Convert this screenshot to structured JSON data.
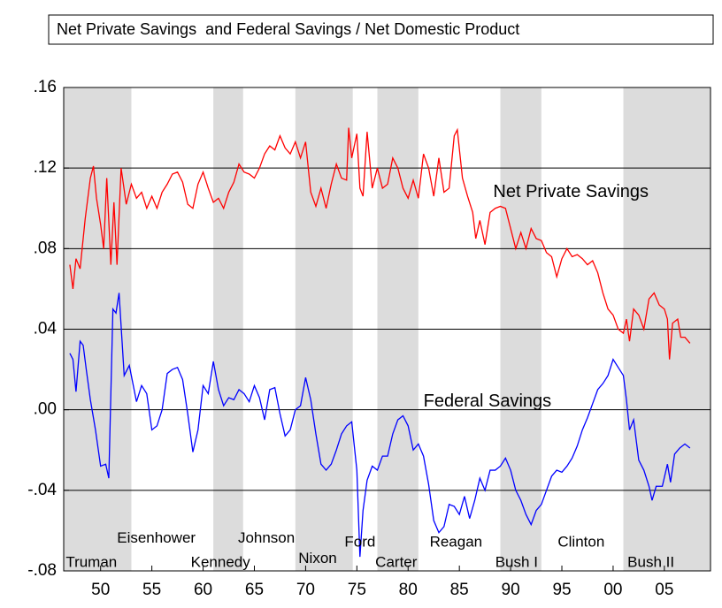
{
  "chart_data": {
    "type": "line",
    "title": "Net Private Savings  and Federal Savings / Net Domestic Product",
    "xlim": [
      1946.4,
      2009.5
    ],
    "ylim": [
      -0.08,
      0.16
    ],
    "xticks": [
      {
        "value": 1950,
        "label": "50"
      },
      {
        "value": 1955,
        "label": "55"
      },
      {
        "value": 1960,
        "label": "60"
      },
      {
        "value": 1965,
        "label": "65"
      },
      {
        "value": 1970,
        "label": "70"
      },
      {
        "value": 1975,
        "label": "75"
      },
      {
        "value": 1980,
        "label": "80"
      },
      {
        "value": 1985,
        "label": "85"
      },
      {
        "value": 1990,
        "label": "90"
      },
      {
        "value": 1995,
        "label": "95"
      },
      {
        "value": 2000,
        "label": "00"
      },
      {
        "value": 2005,
        "label": "05"
      }
    ],
    "yticks": [
      {
        "value": -0.08,
        "label": "-.08"
      },
      {
        "value": -0.04,
        "label": "-.04"
      },
      {
        "value": 0,
        "label": ".00"
      },
      {
        "value": 0.04,
        "label": ".04"
      },
      {
        "value": 0.08,
        "label": ".08"
      },
      {
        "value": 0.12,
        "label": ".12"
      },
      {
        "value": 0.16,
        "label": ".16"
      }
    ],
    "grid": true,
    "shading": [
      [
        1945,
        1953
      ],
      [
        1961,
        1963.9
      ],
      [
        1969,
        1974.6
      ],
      [
        1977,
        1981
      ],
      [
        1989,
        1993
      ],
      [
        2001,
        2010
      ]
    ],
    "shading_color": "#dcdcdc",
    "series": [
      {
        "name": "Net Private Savings",
        "color": "#ff0000",
        "x": [
          1947.0,
          1947.3,
          1947.6,
          1948.0,
          1948.5,
          1949.0,
          1949.3,
          1949.6,
          1950.0,
          1950.3,
          1950.6,
          1951.0,
          1951.3,
          1951.6,
          1952.0,
          1952.5,
          1953.0,
          1953.5,
          1954.0,
          1954.5,
          1955.0,
          1955.5,
          1956.0,
          1956.5,
          1957.0,
          1957.5,
          1958.0,
          1958.5,
          1959.0,
          1959.5,
          1960.0,
          1960.5,
          1961.0,
          1961.5,
          1962.0,
          1962.5,
          1963.0,
          1963.5,
          1964.0,
          1964.5,
          1965.0,
          1965.5,
          1966.0,
          1966.5,
          1967.0,
          1967.5,
          1968.0,
          1968.5,
          1969.0,
          1969.5,
          1970.0,
          1970.5,
          1971.0,
          1971.5,
          1972.0,
          1972.5,
          1973.0,
          1973.5,
          1974.0,
          1974.2,
          1974.5,
          1975.0,
          1975.3,
          1975.6,
          1976.0,
          1976.5,
          1977.0,
          1977.5,
          1978.0,
          1978.5,
          1979.0,
          1979.5,
          1980.0,
          1980.5,
          1981.0,
          1981.5,
          1982.0,
          1982.5,
          1983.0,
          1983.5,
          1984.0,
          1984.5,
          1984.8,
          1985.3,
          1985.8,
          1986.3,
          1986.6,
          1987.0,
          1987.5,
          1988.0,
          1988.5,
          1989.0,
          1989.5,
          1990.0,
          1990.5,
          1991.0,
          1991.5,
          1992.0,
          1992.5,
          1993.0,
          1993.5,
          1994.0,
          1994.5,
          1995.0,
          1995.5,
          1996.0,
          1996.5,
          1997.0,
          1997.5,
          1998.0,
          1998.5,
          1999.0,
          1999.5,
          2000.0,
          2000.5,
          2001.0,
          2001.3,
          2001.6,
          2002.0,
          2002.5,
          2003.0,
          2003.5,
          2004.0,
          2004.5,
          2005.0,
          2005.3,
          2005.5,
          2005.8,
          2006.3,
          2006.6,
          2007.0,
          2007.5
        ],
        "values": [
          0.072,
          0.06,
          0.075,
          0.07,
          0.095,
          0.115,
          0.121,
          0.105,
          0.092,
          0.08,
          0.115,
          0.072,
          0.103,
          0.072,
          0.12,
          0.102,
          0.112,
          0.105,
          0.108,
          0.1,
          0.106,
          0.1,
          0.108,
          0.112,
          0.117,
          0.118,
          0.113,
          0.102,
          0.1,
          0.112,
          0.118,
          0.11,
          0.103,
          0.105,
          0.1,
          0.108,
          0.113,
          0.122,
          0.118,
          0.117,
          0.115,
          0.12,
          0.127,
          0.131,
          0.129,
          0.136,
          0.13,
          0.127,
          0.133,
          0.125,
          0.133,
          0.108,
          0.101,
          0.11,
          0.1,
          0.112,
          0.122,
          0.115,
          0.114,
          0.14,
          0.125,
          0.137,
          0.11,
          0.106,
          0.138,
          0.11,
          0.12,
          0.11,
          0.112,
          0.125,
          0.12,
          0.11,
          0.105,
          0.114,
          0.105,
          0.127,
          0.12,
          0.106,
          0.125,
          0.108,
          0.11,
          0.136,
          0.139,
          0.115,
          0.106,
          0.098,
          0.085,
          0.094,
          0.082,
          0.098,
          0.1,
          0.101,
          0.1,
          0.09,
          0.08,
          0.088,
          0.08,
          0.09,
          0.085,
          0.084,
          0.078,
          0.076,
          0.066,
          0.075,
          0.08,
          0.076,
          0.077,
          0.075,
          0.072,
          0.074,
          0.068,
          0.058,
          0.05,
          0.047,
          0.04,
          0.038,
          0.045,
          0.034,
          0.05,
          0.047,
          0.04,
          0.055,
          0.058,
          0.052,
          0.05,
          0.045,
          0.025,
          0.043,
          0.045,
          0.036,
          0.036,
          0.033
        ]
      },
      {
        "name": "Federal Savings",
        "color": "#0000ff",
        "x": [
          1947.0,
          1947.3,
          1947.6,
          1948.0,
          1948.3,
          1948.6,
          1949.0,
          1949.5,
          1950.0,
          1950.5,
          1950.8,
          1951.2,
          1951.5,
          1951.8,
          1952.3,
          1952.8,
          1953.5,
          1954.0,
          1954.5,
          1955.0,
          1955.5,
          1956.0,
          1956.5,
          1957.0,
          1957.5,
          1958.0,
          1958.5,
          1959.0,
          1959.5,
          1960.0,
          1960.5,
          1961.0,
          1961.5,
          1962.0,
          1962.5,
          1963.0,
          1963.5,
          1964.0,
          1964.5,
          1965.0,
          1965.5,
          1966.0,
          1966.5,
          1967.0,
          1967.5,
          1968.0,
          1968.5,
          1969.0,
          1969.5,
          1970.0,
          1970.5,
          1971.0,
          1971.5,
          1972.0,
          1972.5,
          1973.0,
          1973.5,
          1974.0,
          1974.5,
          1975.0,
          1975.3,
          1975.6,
          1976.0,
          1976.5,
          1977.0,
          1977.5,
          1978.0,
          1978.5,
          1979.0,
          1979.5,
          1980.0,
          1980.5,
          1981.0,
          1981.5,
          1982.0,
          1982.5,
          1983.0,
          1983.5,
          1984.0,
          1984.5,
          1985.0,
          1985.5,
          1986.0,
          1986.5,
          1987.0,
          1987.5,
          1988.0,
          1988.5,
          1989.0,
          1989.5,
          1990.0,
          1990.5,
          1991.0,
          1991.5,
          1992.0,
          1992.5,
          1993.0,
          1993.5,
          1994.0,
          1994.5,
          1995.0,
          1995.5,
          1996.0,
          1996.5,
          1997.0,
          1997.5,
          1998.0,
          1998.5,
          1999.0,
          1999.5,
          2000.0,
          2000.5,
          2001.0,
          2001.3,
          2001.6,
          2002.0,
          2002.5,
          2003.0,
          2003.5,
          2003.8,
          2004.2,
          2004.8,
          2005.3,
          2005.6,
          2006.0,
          2006.5,
          2007.0,
          2007.5
        ],
        "values": [
          0.028,
          0.025,
          0.009,
          0.034,
          0.032,
          0.02,
          0.005,
          -0.01,
          -0.028,
          -0.027,
          -0.034,
          0.05,
          0.048,
          0.058,
          0.017,
          0.022,
          0.004,
          0.012,
          0.008,
          -0.01,
          -0.008,
          0.0,
          0.018,
          0.02,
          0.021,
          0.015,
          -0.002,
          -0.021,
          -0.01,
          0.012,
          0.008,
          0.024,
          0.01,
          0.002,
          0.006,
          0.005,
          0.01,
          0.008,
          0.004,
          0.012,
          0.006,
          -0.005,
          0.01,
          0.011,
          -0.002,
          -0.013,
          -0.01,
          0.0,
          0.002,
          0.016,
          0.005,
          -0.012,
          -0.027,
          -0.03,
          -0.027,
          -0.02,
          -0.012,
          -0.008,
          -0.006,
          -0.03,
          -0.073,
          -0.05,
          -0.035,
          -0.028,
          -0.03,
          -0.023,
          -0.023,
          -0.012,
          -0.005,
          -0.003,
          -0.008,
          -0.02,
          -0.017,
          -0.023,
          -0.037,
          -0.055,
          -0.061,
          -0.058,
          -0.047,
          -0.048,
          -0.052,
          -0.043,
          -0.054,
          -0.045,
          -0.034,
          -0.04,
          -0.03,
          -0.03,
          -0.028,
          -0.024,
          -0.03,
          -0.04,
          -0.045,
          -0.052,
          -0.057,
          -0.05,
          -0.047,
          -0.04,
          -0.033,
          -0.03,
          -0.031,
          -0.028,
          -0.024,
          -0.018,
          -0.01,
          -0.004,
          0.003,
          0.01,
          0.013,
          0.017,
          0.025,
          0.021,
          0.017,
          0.005,
          -0.01,
          -0.005,
          -0.025,
          -0.03,
          -0.038,
          -0.045,
          -0.038,
          -0.038,
          -0.027,
          -0.036,
          -0.022,
          -0.019,
          -0.017,
          -0.019
        ]
      }
    ],
    "annotations": [
      {
        "text": "Net Private Savings",
        "x": 1988.3,
        "y": 0.108,
        "size": "big"
      },
      {
        "text": "Federal Savings",
        "x": 1981.5,
        "y": 0.004,
        "size": "big"
      },
      {
        "text": "Truman",
        "x": 1946.6,
        "y": -0.076
      },
      {
        "text": "Eisenhower",
        "x": 1951.6,
        "y": -0.064
      },
      {
        "text": "Kennedy",
        "x": 1958.8,
        "y": -0.076
      },
      {
        "text": "Johnson",
        "x": 1963.4,
        "y": -0.064
      },
      {
        "text": "Nixon",
        "x": 1969.3,
        "y": -0.074
      },
      {
        "text": "Ford",
        "x": 1973.8,
        "y": -0.066
      },
      {
        "text": "Carter",
        "x": 1976.8,
        "y": -0.076
      },
      {
        "text": "Reagan",
        "x": 1982.1,
        "y": -0.066
      },
      {
        "text": "Bush I",
        "x": 1988.5,
        "y": -0.076
      },
      {
        "text": "Clinton",
        "x": 1994.6,
        "y": -0.066
      },
      {
        "text": "Bush II",
        "x": 2001.4,
        "y": -0.076
      }
    ]
  }
}
